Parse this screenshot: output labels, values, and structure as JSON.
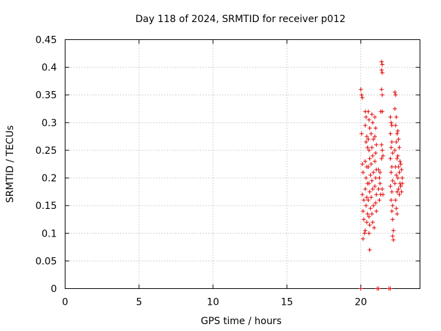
{
  "chart_data": {
    "type": "scatter",
    "title": "Day 118 of 2024, SRMTID for receiver p012",
    "xlabel": "GPS time / hours",
    "ylabel": "SRMTID / TECUs",
    "xlim": [
      0,
      24
    ],
    "ylim": [
      0,
      0.45
    ],
    "x_ticks": [
      0,
      5,
      10,
      15,
      20
    ],
    "x_tick_labels": [
      "0",
      "5",
      "10",
      "15",
      "20"
    ],
    "y_ticks": [
      0,
      0.05,
      0.1,
      0.15,
      0.2,
      0.25,
      0.3,
      0.35,
      0.4,
      0.45
    ],
    "y_tick_labels": [
      "0",
      "0.05",
      "0.1",
      "0.15",
      "0.2",
      "0.25",
      "0.3",
      "0.35",
      "0.4",
      "0.45"
    ],
    "grid": true,
    "marker": "plus",
    "color": "#e00000",
    "series": [
      {
        "name": "SRMTID",
        "points": [
          [
            20.0,
            0.36
          ],
          [
            20.05,
            0.35
          ],
          [
            20.1,
            0.345
          ],
          [
            20.05,
            0.28
          ],
          [
            20.1,
            0.225
          ],
          [
            20.15,
            0.21
          ],
          [
            20.1,
            0.17
          ],
          [
            20.2,
            0.16
          ],
          [
            20.15,
            0.14
          ],
          [
            20.2,
            0.125
          ],
          [
            20.25,
            0.1
          ],
          [
            20.15,
            0.09
          ],
          [
            20.3,
            0.32
          ],
          [
            20.35,
            0.31
          ],
          [
            20.3,
            0.295
          ],
          [
            20.4,
            0.275
          ],
          [
            20.35,
            0.265
          ],
          [
            20.45,
            0.255
          ],
          [
            20.3,
            0.23
          ],
          [
            20.4,
            0.22
          ],
          [
            20.35,
            0.2
          ],
          [
            20.45,
            0.19
          ],
          [
            20.3,
            0.18
          ],
          [
            20.4,
            0.165
          ],
          [
            20.35,
            0.15
          ],
          [
            20.45,
            0.135
          ],
          [
            20.4,
            0.12
          ],
          [
            20.3,
            0.105
          ],
          [
            20.5,
            0.32
          ],
          [
            20.55,
            0.305
          ],
          [
            20.6,
            0.29
          ],
          [
            20.5,
            0.27
          ],
          [
            20.55,
            0.25
          ],
          [
            20.6,
            0.235
          ],
          [
            20.5,
            0.22
          ],
          [
            20.65,
            0.205
          ],
          [
            20.55,
            0.19
          ],
          [
            20.6,
            0.175
          ],
          [
            20.5,
            0.16
          ],
          [
            20.65,
            0.145
          ],
          [
            20.55,
            0.13
          ],
          [
            20.6,
            0.115
          ],
          [
            20.55,
            0.1
          ],
          [
            20.6,
            0.07
          ],
          [
            20.75,
            0.315
          ],
          [
            20.8,
            0.3
          ],
          [
            20.7,
            0.28
          ],
          [
            20.85,
            0.27
          ],
          [
            20.75,
            0.255
          ],
          [
            20.8,
            0.24
          ],
          [
            20.7,
            0.225
          ],
          [
            20.85,
            0.21
          ],
          [
            20.75,
            0.195
          ],
          [
            20.8,
            0.18
          ],
          [
            20.7,
            0.165
          ],
          [
            20.85,
            0.15
          ],
          [
            20.75,
            0.135
          ],
          [
            20.8,
            0.12
          ],
          [
            20.9,
            0.11
          ],
          [
            20.95,
            0.31
          ],
          [
            21.0,
            0.29
          ],
          [
            20.95,
            0.275
          ],
          [
            21.05,
            0.26
          ],
          [
            21.0,
            0.245
          ],
          [
            20.95,
            0.23
          ],
          [
            21.05,
            0.215
          ],
          [
            21.0,
            0.2
          ],
          [
            20.95,
            0.185
          ],
          [
            21.05,
            0.17
          ],
          [
            21.0,
            0.155
          ],
          [
            21.05,
            0.14
          ],
          [
            21.2,
            0.215
          ],
          [
            21.25,
            0.2
          ],
          [
            21.3,
            0.19
          ],
          [
            21.2,
            0.18
          ],
          [
            21.35,
            0.17
          ],
          [
            21.25,
            0.16
          ],
          [
            21.3,
            0.21
          ],
          [
            21.4,
            0.41
          ],
          [
            21.45,
            0.405
          ],
          [
            21.4,
            0.395
          ],
          [
            21.45,
            0.39
          ],
          [
            21.4,
            0.36
          ],
          [
            21.45,
            0.35
          ],
          [
            21.35,
            0.32
          ],
          [
            21.45,
            0.32
          ],
          [
            21.4,
            0.26
          ],
          [
            21.45,
            0.25
          ],
          [
            21.5,
            0.24
          ],
          [
            21.4,
            0.235
          ],
          [
            21.45,
            0.18
          ],
          [
            21.5,
            0.17
          ],
          [
            22.0,
            0.31
          ],
          [
            22.05,
            0.3
          ],
          [
            22.1,
            0.295
          ],
          [
            22.0,
            0.28
          ],
          [
            22.1,
            0.265
          ],
          [
            22.05,
            0.255
          ],
          [
            22.15,
            0.245
          ],
          [
            22.0,
            0.235
          ],
          [
            22.1,
            0.22
          ],
          [
            22.05,
            0.21
          ],
          [
            22.15,
            0.195
          ],
          [
            22.0,
            0.185
          ],
          [
            22.1,
            0.175
          ],
          [
            22.05,
            0.16
          ],
          [
            22.15,
            0.15
          ],
          [
            22.1,
            0.14
          ],
          [
            22.15,
            0.125
          ],
          [
            22.2,
            0.105
          ],
          [
            22.15,
            0.095
          ],
          [
            22.2,
            0.088
          ],
          [
            22.3,
            0.355
          ],
          [
            22.35,
            0.35
          ],
          [
            22.3,
            0.325
          ],
          [
            22.4,
            0.31
          ],
          [
            22.35,
            0.295
          ],
          [
            22.45,
            0.28
          ],
          [
            22.4,
            0.265
          ],
          [
            22.3,
            0.25
          ],
          [
            22.45,
            0.235
          ],
          [
            22.35,
            0.22
          ],
          [
            22.4,
            0.205
          ],
          [
            22.3,
            0.19
          ],
          [
            22.45,
            0.175
          ],
          [
            22.35,
            0.16
          ],
          [
            22.4,
            0.145
          ],
          [
            22.45,
            0.135
          ],
          [
            22.5,
            0.285
          ],
          [
            22.55,
            0.27
          ],
          [
            22.6,
            0.255
          ],
          [
            22.5,
            0.24
          ],
          [
            22.65,
            0.23
          ],
          [
            22.55,
            0.22
          ],
          [
            22.6,
            0.21
          ],
          [
            22.5,
            0.2
          ],
          [
            22.65,
            0.19
          ],
          [
            22.55,
            0.18
          ],
          [
            22.6,
            0.17
          ],
          [
            22.7,
            0.225
          ],
          [
            22.75,
            0.215
          ],
          [
            22.8,
            0.2
          ],
          [
            22.7,
            0.185
          ],
          [
            22.75,
            0.175
          ],
          [
            22.8,
            0.19
          ],
          [
            20.0,
            0.0
          ],
          [
            21.1,
            0.0
          ],
          [
            21.2,
            0.0
          ],
          [
            21.9,
            0.0
          ],
          [
            22.0,
            0.0
          ]
        ]
      }
    ]
  }
}
